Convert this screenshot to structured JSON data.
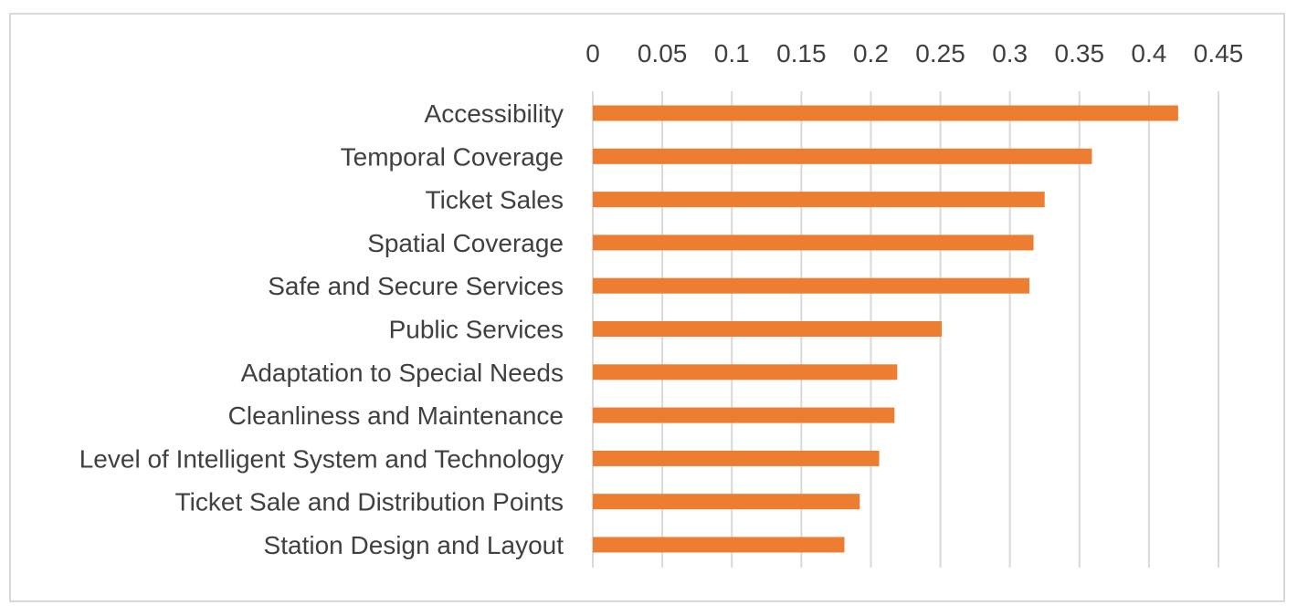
{
  "chart_data": {
    "type": "bar",
    "orientation": "horizontal",
    "x_axis_position": "top",
    "title": "",
    "xlabel": "",
    "ylabel": "",
    "xlim": [
      0,
      0.45
    ],
    "x_ticks": [
      "0",
      "0.05",
      "0.1",
      "0.15",
      "0.2",
      "0.25",
      "0.3",
      "0.35",
      "0.4",
      "0.45"
    ],
    "x_tick_values": [
      0,
      0.05,
      0.1,
      0.15,
      0.2,
      0.25,
      0.3,
      0.35,
      0.4,
      0.45
    ],
    "grid": true,
    "legend": "none",
    "categories": [
      "Accessibility",
      "Temporal Coverage",
      "Ticket Sales",
      "Spatial Coverage",
      "Safe and Secure Services",
      "Public Services",
      "Adaptation to Special Needs",
      "Cleanliness and Maintenance",
      "Level of Intelligent System and Technology",
      "Ticket Sale and Distribution Points",
      "Station Design and Layout"
    ],
    "values": [
      0.421,
      0.359,
      0.325,
      0.317,
      0.314,
      0.251,
      0.219,
      0.217,
      0.206,
      0.192,
      0.181
    ],
    "bar_color": "#ED7D31",
    "grid_color": "#d9d9d9",
    "frame_color": "#d9d9d9"
  }
}
